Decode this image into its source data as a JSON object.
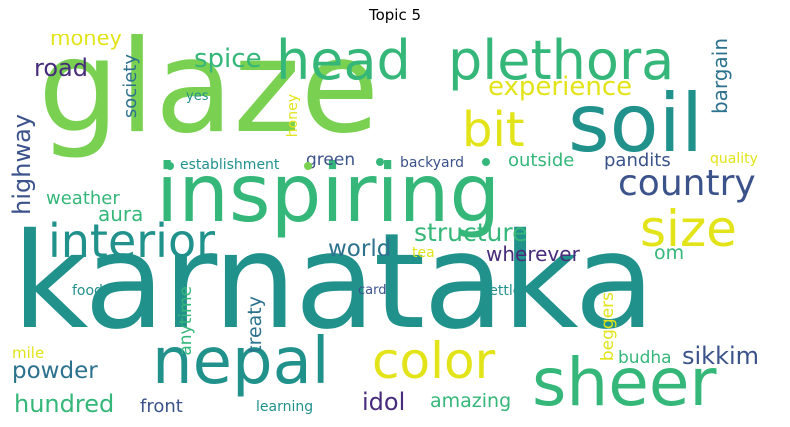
{
  "title": "Topic 5",
  "colors": {
    "yellow": "#e2e419",
    "lime": "#7ad151",
    "green": "#35b779",
    "teal": "#21918c",
    "blue": "#2c728e",
    "indigo": "#3b528b",
    "purple": "#472d7b",
    "dark": "#440154"
  },
  "words": {
    "karnataka": "karnataka",
    "glaze": "glaze",
    "inspiring": "inspiring",
    "soil": "soil",
    "head": "head",
    "plethora": "plethora",
    "sheer": "sheer",
    "nepal": "nepal",
    "interior": "interior",
    "size": "size",
    "bit": "bit",
    "country": "country",
    "color": "color",
    "spice": "spice",
    "experience": "experience",
    "money": "money",
    "road": "road",
    "highway": "highway",
    "society": "society",
    "yes": "yes",
    "honey": "honey",
    "bargain": "bargain",
    "establishment": "establishment",
    "green": "green",
    "backyard": "backyard",
    "outside": "outside",
    "pandits": "pandits",
    "quality": "quality",
    "weather": "weather",
    "aura": "aura",
    "structure": "structure",
    "world": "world",
    "tea": "tea",
    "wherever": "wherever",
    "om": "om",
    "food": "food",
    "anytime": "anytime",
    "treaty": "treaty",
    "card": "card",
    "settler": "settler",
    "beggers": "beggers",
    "mile": "mile",
    "powder": "powder",
    "budha": "budha",
    "sikkim": "sikkim",
    "hundred": "hundred",
    "front": "front",
    "learning": "learning",
    "idol": "idol",
    "amazing": "amazing"
  }
}
